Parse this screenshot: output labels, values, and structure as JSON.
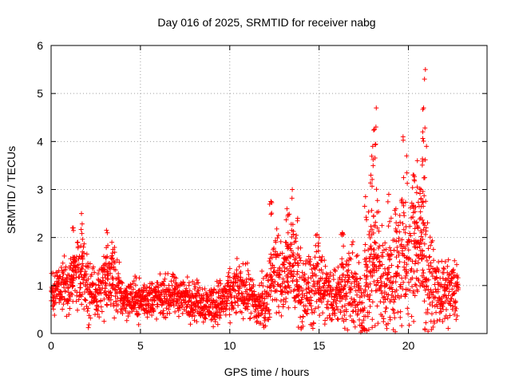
{
  "chart_data": {
    "type": "scatter",
    "title": "Day 016 of 2025, SRMTID for receiver nabg",
    "xlabel": "GPS time / hours",
    "ylabel": "SRMTID / TECUs",
    "xlim": [
      0,
      24.4
    ],
    "ylim": [
      0,
      6
    ],
    "xticks": [
      0,
      5,
      10,
      15,
      20
    ],
    "yticks": [
      0,
      1,
      2,
      3,
      4,
      5,
      6
    ],
    "grid": true,
    "marker": "+",
    "marker_color": "#ff0000",
    "series": [
      {
        "name": "SRMTID",
        "trend": [
          [
            0.0,
            0.9,
            0.2
          ],
          [
            0.5,
            1.0,
            0.25
          ],
          [
            1.0,
            0.95,
            0.25
          ],
          [
            1.5,
            1.4,
            0.35
          ],
          [
            2.0,
            1.1,
            0.4
          ],
          [
            2.5,
            0.75,
            0.2
          ],
          [
            3.0,
            1.0,
            0.35
          ],
          [
            3.5,
            1.1,
            0.4
          ],
          [
            4.0,
            0.75,
            0.2
          ],
          [
            5.0,
            0.7,
            0.2
          ],
          [
            6.0,
            0.75,
            0.2
          ],
          [
            7.0,
            0.8,
            0.2
          ],
          [
            8.0,
            0.7,
            0.2
          ],
          [
            9.0,
            0.6,
            0.2
          ],
          [
            10.0,
            0.75,
            0.25
          ],
          [
            10.5,
            0.95,
            0.25
          ],
          [
            11.0,
            0.85,
            0.25
          ],
          [
            11.5,
            0.55,
            0.25
          ],
          [
            12.0,
            0.7,
            0.3
          ],
          [
            12.5,
            1.4,
            0.4
          ],
          [
            13.0,
            1.1,
            0.4
          ],
          [
            13.5,
            1.5,
            0.5
          ],
          [
            14.0,
            0.8,
            0.4
          ],
          [
            14.5,
            0.9,
            0.4
          ],
          [
            15.0,
            1.2,
            0.4
          ],
          [
            15.5,
            0.8,
            0.3
          ],
          [
            16.0,
            0.85,
            0.3
          ],
          [
            16.5,
            1.0,
            0.4
          ],
          [
            17.0,
            0.9,
            0.4
          ],
          [
            17.5,
            0.5,
            0.4
          ],
          [
            18.0,
            1.6,
            0.8
          ],
          [
            18.5,
            1.2,
            0.5
          ],
          [
            19.0,
            1.0,
            0.6
          ],
          [
            19.5,
            1.6,
            0.8
          ],
          [
            20.0,
            1.4,
            0.6
          ],
          [
            20.5,
            2.0,
            0.9
          ],
          [
            21.0,
            1.3,
            0.6
          ],
          [
            21.5,
            0.9,
            0.3
          ],
          [
            22.0,
            0.8,
            0.3
          ],
          [
            22.8,
            0.9,
            0.35
          ]
        ],
        "peaks": [
          [
            1.2,
            2.2
          ],
          [
            1.7,
            2.5
          ],
          [
            3.1,
            2.15
          ],
          [
            3.4,
            1.9
          ],
          [
            12.3,
            2.75
          ],
          [
            13.2,
            2.6
          ],
          [
            13.5,
            3.0
          ],
          [
            13.8,
            2.4
          ],
          [
            15.0,
            2.0
          ],
          [
            16.3,
            2.1
          ],
          [
            17.6,
            2.85
          ],
          [
            17.9,
            3.3
          ],
          [
            18.0,
            3.9
          ],
          [
            18.1,
            4.25
          ],
          [
            18.2,
            4.7
          ],
          [
            18.9,
            2.9
          ],
          [
            19.3,
            2.6
          ],
          [
            19.7,
            4.1
          ],
          [
            19.9,
            3.7
          ],
          [
            20.3,
            3.3
          ],
          [
            20.5,
            3.6
          ],
          [
            20.7,
            3.0
          ],
          [
            20.8,
            4.2
          ],
          [
            20.85,
            4.7
          ],
          [
            20.9,
            5.3
          ],
          [
            20.95,
            5.5
          ]
        ],
        "n_points": 2400
      }
    ]
  }
}
